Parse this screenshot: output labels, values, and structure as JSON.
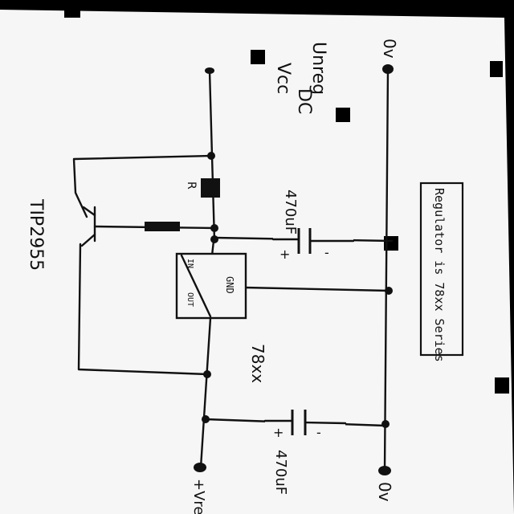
{
  "diagram": {
    "labels": {
      "unreg_line1": "Unreg",
      "unreg_line2": "DC",
      "vcc": "Vcc",
      "v0_top": "0v",
      "v0_bottom": "0v",
      "vreg": "+Vreg",
      "transistor": "TIP2955",
      "resistor": "R",
      "cap_top": "470uF",
      "cap_bottom": "470uF",
      "plus_top": "+",
      "minus_top": "-",
      "plus_bottom": "+",
      "minus_bottom": "-",
      "reg_in": "IN",
      "reg_out": "OUT",
      "reg_gnd": "GND",
      "reg_family": "78xx",
      "note": "Regulator is 78xx Series"
    }
  }
}
